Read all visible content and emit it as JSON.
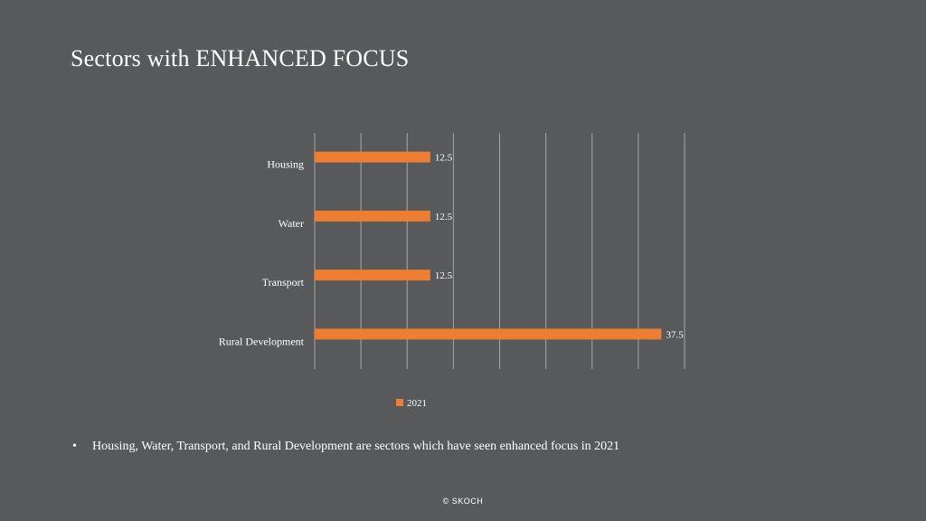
{
  "slide": {
    "title": "Sectors with ENHANCED FOCUS",
    "bullet": "Housing, Water, Transport, and Rural Development are sectors which have seen enhanced focus in 2021",
    "bullet_marker": "•",
    "footer": "© SKOCH"
  },
  "colors": {
    "background": "#58595b",
    "bar": "#ed7d31",
    "grid": "#a6a6a6",
    "text": "#ffffff"
  },
  "chart_data": {
    "type": "bar",
    "orientation": "horizontal",
    "categories": [
      "Housing",
      "Water",
      "Transport",
      "Rural Development"
    ],
    "series": [
      {
        "name": "2021",
        "values": [
          12.5,
          12.5,
          12.5,
          37.5
        ]
      }
    ],
    "data_labels": [
      "12.5",
      "12.5",
      "12.5",
      "37.5"
    ],
    "xlim": [
      0,
      40
    ],
    "gridlines": "vertical",
    "legend_position": "bottom"
  }
}
